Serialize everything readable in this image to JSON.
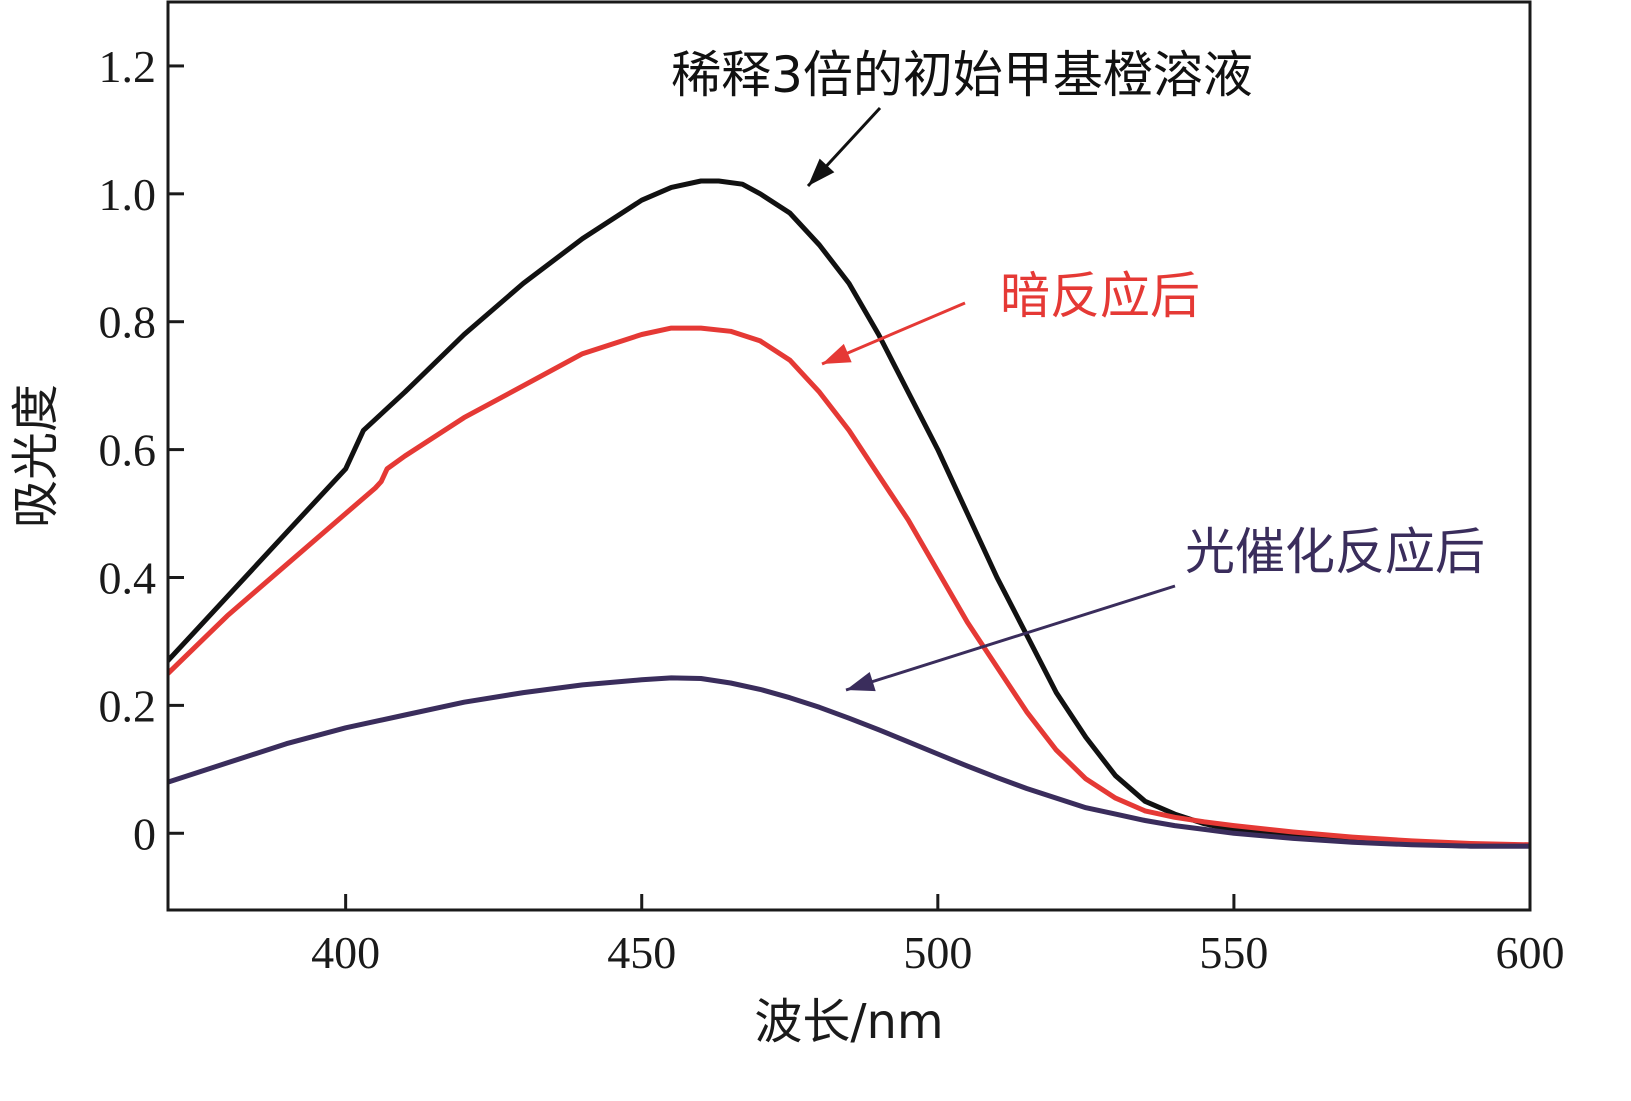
{
  "chart_data": {
    "type": "line",
    "title": "",
    "xlabel": "波长/nm",
    "ylabel": "吸光度",
    "xlim": [
      370,
      600
    ],
    "ylim": [
      -0.12,
      1.3
    ],
    "xticks": [
      400,
      450,
      500,
      550,
      600
    ],
    "xtick_labels": [
      "400",
      "450",
      "500",
      "550",
      "600"
    ],
    "yticks": [
      0,
      0.2,
      0.4,
      0.6,
      0.8,
      1.0,
      1.2
    ],
    "ytick_labels": [
      "0",
      "0.2",
      "0.4",
      "0.6",
      "0.8",
      "1.0",
      "1.2"
    ],
    "grid": false,
    "legend": "none",
    "series": [
      {
        "name": "稀释3倍的初始甲基橙溶液",
        "color": "#111111",
        "x": [
          370,
          380,
          390,
          400,
          403,
          410,
          420,
          430,
          440,
          450,
          455,
          460,
          463,
          467,
          470,
          475,
          480,
          485,
          490,
          495,
          500,
          505,
          510,
          515,
          520,
          525,
          530,
          535,
          540,
          545,
          550,
          560,
          570,
          580,
          590,
          600
        ],
        "y": [
          0.27,
          0.37,
          0.47,
          0.57,
          0.63,
          0.69,
          0.78,
          0.86,
          0.93,
          0.99,
          1.01,
          1.02,
          1.02,
          1.015,
          1.0,
          0.97,
          0.92,
          0.86,
          0.78,
          0.69,
          0.6,
          0.5,
          0.4,
          0.31,
          0.22,
          0.15,
          0.09,
          0.05,
          0.03,
          0.015,
          0.005,
          -0.005,
          -0.012,
          -0.017,
          -0.02,
          -0.02
        ]
      },
      {
        "name": "暗反应后",
        "color": "#e53935",
        "x": [
          370,
          380,
          390,
          400,
          405,
          406,
          407,
          410,
          420,
          430,
          440,
          450,
          455,
          460,
          465,
          470,
          475,
          480,
          485,
          490,
          495,
          500,
          505,
          510,
          515,
          520,
          525,
          530,
          535,
          540,
          545,
          550,
          560,
          570,
          580,
          590,
          600
        ],
        "y": [
          0.25,
          0.34,
          0.42,
          0.5,
          0.54,
          0.55,
          0.57,
          0.59,
          0.65,
          0.7,
          0.75,
          0.78,
          0.79,
          0.79,
          0.785,
          0.77,
          0.74,
          0.69,
          0.63,
          0.56,
          0.49,
          0.41,
          0.33,
          0.26,
          0.19,
          0.13,
          0.085,
          0.055,
          0.035,
          0.025,
          0.018,
          0.012,
          0.002,
          -0.006,
          -0.012,
          -0.016,
          -0.018
        ]
      },
      {
        "name": "光催化反应后",
        "color": "#3a2d5c",
        "x": [
          370,
          380,
          390,
          400,
          410,
          420,
          430,
          440,
          450,
          455,
          460,
          465,
          470,
          475,
          480,
          485,
          490,
          495,
          500,
          505,
          510,
          515,
          520,
          525,
          530,
          535,
          540,
          545,
          550,
          560,
          570,
          580,
          590,
          600
        ],
        "y": [
          0.08,
          0.11,
          0.14,
          0.165,
          0.185,
          0.205,
          0.22,
          0.232,
          0.24,
          0.243,
          0.242,
          0.235,
          0.225,
          0.212,
          0.197,
          0.18,
          0.162,
          0.143,
          0.124,
          0.105,
          0.087,
          0.07,
          0.055,
          0.04,
          0.03,
          0.02,
          0.012,
          0.006,
          0.0,
          -0.008,
          -0.014,
          -0.018,
          -0.02,
          -0.02
        ]
      }
    ],
    "annotations": [
      {
        "text": "稀释3倍的初始甲基橙溶液",
        "series": 0,
        "color": "#111111"
      },
      {
        "text": "暗反应后",
        "series": 1,
        "color": "#e53935"
      },
      {
        "text": "光催化反应后",
        "series": 2,
        "color": "#3a2d5c"
      }
    ]
  }
}
